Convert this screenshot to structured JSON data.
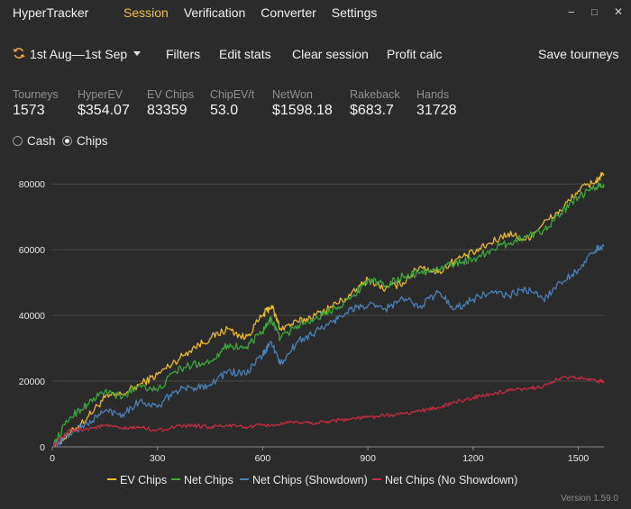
{
  "app": {
    "title": "HyperTracker"
  },
  "nav": {
    "tabs": [
      "Session",
      "Verification",
      "Converter",
      "Settings"
    ],
    "active": "Session"
  },
  "window_controls": {
    "minimize": "−",
    "maximize": "□",
    "close": "✕"
  },
  "toolbar": {
    "date_range": "1st Aug—1st Sep",
    "filters": "Filters",
    "edit_stats": "Edit stats",
    "clear_session": "Clear session",
    "profit_calc": "Profit calc",
    "save_tourneys": "Save tourneys"
  },
  "stats": [
    {
      "label": "Tourneys",
      "value": "1573"
    },
    {
      "label": "HyperEV",
      "value": "$354.07"
    },
    {
      "label": "EV Chips",
      "value": "83359"
    },
    {
      "label": "ChipEV/t",
      "value": "53.0"
    },
    {
      "label": "NetWon",
      "value": "$1598.18"
    },
    {
      "label": "Rakeback",
      "value": "$683.7"
    },
    {
      "label": "Hands",
      "value": "31728"
    }
  ],
  "mode": {
    "options": [
      "Cash",
      "Chips"
    ],
    "selected": "Chips"
  },
  "colors": {
    "accent": "#f0c048",
    "background": "#2b2b2b",
    "grid": "#4a4a4a"
  },
  "chart_data": {
    "type": "line",
    "xlim": [
      0,
      1573
    ],
    "ylim": [
      0,
      85000
    ],
    "x_ticks": [
      0,
      300,
      600,
      900,
      1200,
      1500
    ],
    "y_ticks": [
      0,
      20000,
      40000,
      60000,
      80000
    ],
    "x_tick_labels": [
      "0",
      "300",
      "600",
      "900",
      "1200",
      "1500"
    ],
    "y_tick_labels": [
      "0",
      "20000",
      "40000",
      "60000",
      "80000"
    ],
    "grid": "horizontal",
    "legend_position": "bottom",
    "series": [
      {
        "name": "EV Chips",
        "color": "#e8b830",
        "x": [
          0,
          50,
          100,
          150,
          200,
          250,
          300,
          350,
          400,
          450,
          500,
          550,
          600,
          625,
          650,
          700,
          750,
          800,
          850,
          900,
          950,
          1000,
          1050,
          1100,
          1150,
          1200,
          1250,
          1300,
          1350,
          1400,
          1450,
          1500,
          1550,
          1573
        ],
        "y": [
          0,
          4000,
          9000,
          15000,
          16000,
          19000,
          22000,
          26000,
          30000,
          33000,
          36000,
          33000,
          40000,
          43000,
          36000,
          38000,
          40000,
          43000,
          46000,
          51000,
          48000,
          50000,
          55000,
          53000,
          57000,
          59000,
          62000,
          65000,
          63000,
          68000,
          72000,
          78000,
          81000,
          83000
        ]
      },
      {
        "name": "Net Chips",
        "color": "#3aa83a",
        "x": [
          0,
          50,
          100,
          150,
          200,
          250,
          300,
          350,
          400,
          450,
          500,
          550,
          600,
          625,
          650,
          700,
          750,
          800,
          850,
          900,
          950,
          1000,
          1050,
          1100,
          1150,
          1200,
          1250,
          1300,
          1350,
          1400,
          1450,
          1500,
          1550,
          1573
        ],
        "y": [
          0,
          9000,
          13000,
          17000,
          15000,
          19000,
          17000,
          23000,
          25000,
          26000,
          31000,
          30000,
          35000,
          39000,
          33000,
          37000,
          39000,
          42000,
          45000,
          51000,
          49000,
          52000,
          53000,
          54000,
          56000,
          57000,
          60000,
          62000,
          64000,
          66000,
          71000,
          76000,
          79000,
          80000
        ]
      },
      {
        "name": "Net Chips (Showdown)",
        "color": "#4a7fb5",
        "x": [
          0,
          50,
          100,
          150,
          200,
          250,
          300,
          350,
          400,
          450,
          500,
          550,
          600,
          625,
          650,
          700,
          750,
          800,
          850,
          900,
          950,
          1000,
          1050,
          1100,
          1150,
          1200,
          1250,
          1300,
          1350,
          1400,
          1450,
          1500,
          1550,
          1573
        ],
        "y": [
          0,
          4000,
          7000,
          11000,
          10000,
          14000,
          12000,
          17000,
          18000,
          19000,
          23000,
          22000,
          28000,
          32000,
          25000,
          32000,
          35000,
          38000,
          42000,
          43000,
          42000,
          45000,
          43000,
          47000,
          42000,
          45000,
          47000,
          46000,
          48000,
          45000,
          50000,
          54000,
          60000,
          61000
        ]
      },
      {
        "name": "Net Chips (No Showdown)",
        "color": "#c82a40",
        "x": [
          0,
          50,
          100,
          150,
          200,
          250,
          300,
          350,
          400,
          450,
          500,
          550,
          600,
          650,
          700,
          750,
          800,
          850,
          900,
          950,
          1000,
          1050,
          1100,
          1150,
          1200,
          1250,
          1300,
          1350,
          1400,
          1450,
          1500,
          1550,
          1573
        ],
        "y": [
          0,
          5000,
          5500,
          6500,
          5500,
          6000,
          5000,
          6000,
          6500,
          6000,
          6500,
          6000,
          6500,
          6800,
          7500,
          7200,
          8000,
          8500,
          9000,
          9500,
          10000,
          11000,
          12000,
          13500,
          15000,
          16000,
          17000,
          17500,
          18500,
          21000,
          21000,
          20000,
          20000
        ]
      }
    ]
  },
  "version": "Version 1.59.0"
}
